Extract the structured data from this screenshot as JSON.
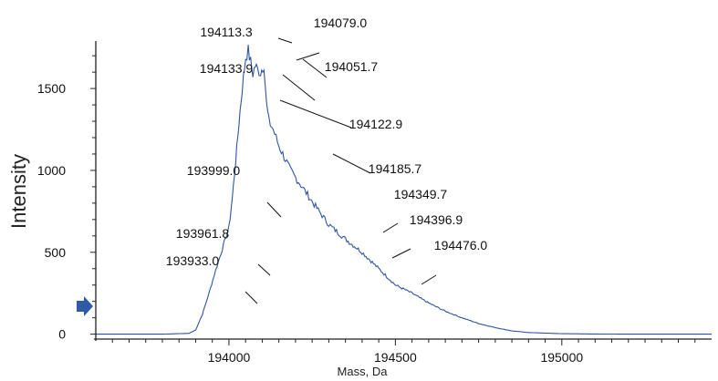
{
  "chart_data": {
    "type": "line",
    "title": "",
    "xlabel": "Mass, Da",
    "ylabel": "Intensity",
    "xlim": [
      193600,
      195450
    ],
    "ylim": [
      -30,
      1790
    ],
    "x_ticks": [
      194000,
      194500,
      195000
    ],
    "x_tick_labels": [
      "194000",
      "194500",
      "195000"
    ],
    "y_ticks": [
      0,
      500,
      1000,
      1500
    ],
    "y_tick_labels": [
      "0",
      "500",
      "1000",
      "1500"
    ],
    "grid": false,
    "legend": "none",
    "line_color": "#2f55a4",
    "marker_color": "#2e5aa8",
    "series": [
      {
        "x": [
          193600,
          193800,
          193880,
          193900,
          193920,
          193940,
          193960,
          193980,
          194000,
          194010,
          194020,
          194030,
          194040,
          194050,
          194058,
          194065,
          194072,
          194079,
          194086,
          194095,
          194105,
          194113,
          194120,
          194133,
          194150,
          194185,
          194220,
          194260,
          194300,
          194350,
          194400,
          194450,
          194500,
          194550,
          194600,
          194650,
          194700,
          194750,
          194800,
          194850,
          194900,
          195000,
          195100,
          195200,
          195300,
          195450
        ],
        "y": [
          0,
          0,
          5,
          25,
          120,
          250,
          390,
          520,
          650,
          830,
          1050,
          1290,
          1500,
          1690,
          1730,
          1660,
          1590,
          1640,
          1615,
          1600,
          1650,
          1400,
          1300,
          1250,
          1150,
          1000,
          900,
          780,
          670,
          580,
          500,
          400,
          300,
          250,
          190,
          140,
          100,
          65,
          40,
          20,
          10,
          3,
          1,
          0,
          0,
          0
        ]
      }
    ],
    "annotations": [
      {
        "text": "194113.3",
        "x": 194065,
        "y": 1730
      },
      {
        "text": "194079.0",
        "x": 194079,
        "y": 1640
      },
      {
        "text": "194133.9",
        "x": 194133,
        "y": 1370
      },
      {
        "text": "194051.7",
        "x": 194090,
        "y": 1620
      },
      {
        "text": "194122.9",
        "x": 194122,
        "y": 1250
      },
      {
        "text": "194185.7",
        "x": 194185,
        "y": 1000
      },
      {
        "text": "193999.0",
        "x": 193999,
        "y": 650
      },
      {
        "text": "194349.7",
        "x": 194349,
        "y": 580
      },
      {
        "text": "194396.9",
        "x": 194396,
        "y": 500
      },
      {
        "text": "193961.8",
        "x": 193961,
        "y": 390
      },
      {
        "text": "194476.0",
        "x": 194476,
        "y": 330
      },
      {
        "text": "193933.0",
        "x": 193933,
        "y": 250
      }
    ]
  }
}
